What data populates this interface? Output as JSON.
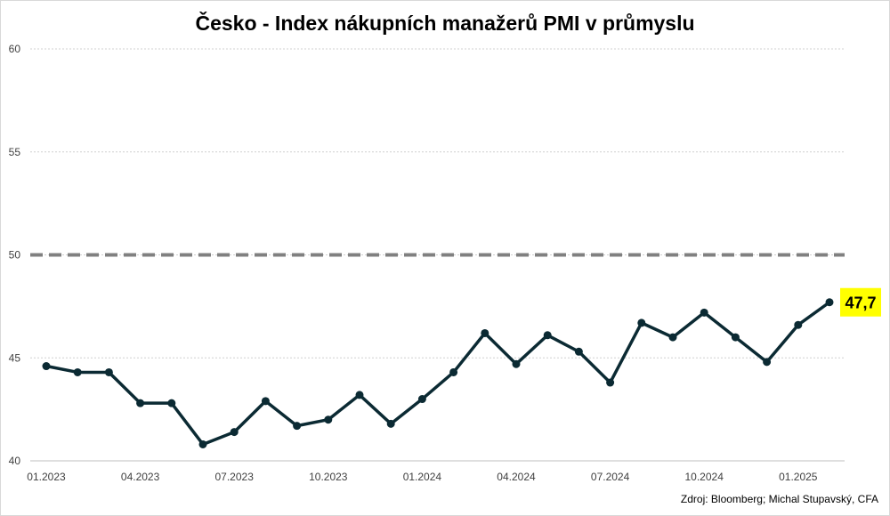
{
  "chart_data": {
    "type": "line",
    "title": "Česko - Index nákupních manažerů PMI v průmyslu",
    "x": [
      "01.2023",
      "02.2023",
      "03.2023",
      "04.2023",
      "05.2023",
      "06.2023",
      "07.2023",
      "08.2023",
      "09.2023",
      "10.2023",
      "11.2023",
      "12.2023",
      "01.2024",
      "02.2024",
      "03.2024",
      "04.2024",
      "05.2024",
      "06.2024",
      "07.2024",
      "08.2024",
      "09.2024",
      "10.2024",
      "11.2024",
      "12.2024",
      "01.2025",
      "02.2025"
    ],
    "x_tick_labels": [
      "01.2023",
      "04.2023",
      "07.2023",
      "10.2023",
      "01.2024",
      "04.2024",
      "07.2024",
      "10.2024",
      "01.2025"
    ],
    "series": [
      {
        "values": [
          44.6,
          44.3,
          44.3,
          42.8,
          42.8,
          40.8,
          41.4,
          42.9,
          41.7,
          42.0,
          43.2,
          41.8,
          43.0,
          44.3,
          46.2,
          44.7,
          46.1,
          45.3,
          43.8,
          46.7,
          46.0,
          47.2,
          46.0,
          44.8,
          46.6,
          47.7
        ],
        "color": "#0b2a33"
      }
    ],
    "reference_line": {
      "value": 50,
      "style": "dashed",
      "color": "#808080"
    },
    "last_value_label": {
      "text": "47,7",
      "background": "#ffff00"
    },
    "ylim": [
      40,
      60
    ],
    "y_ticks": [
      "40",
      "45",
      "50",
      "55",
      "60"
    ],
    "grid": true,
    "xlabel": "",
    "ylabel": ""
  },
  "footer": {
    "source": "Zdroj: Bloomberg; Michal Stupavský, CFA"
  }
}
